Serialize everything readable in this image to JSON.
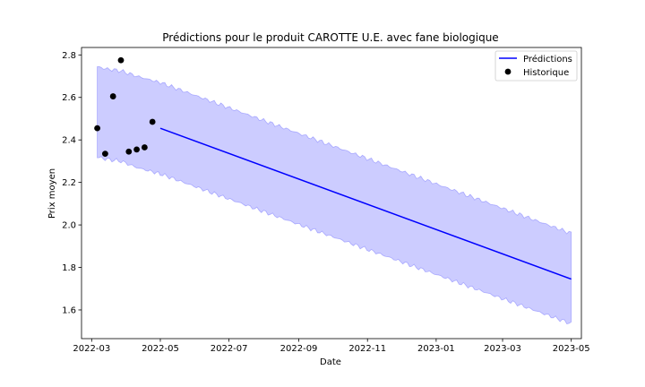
{
  "chart_data": {
    "type": "line",
    "title": "Prédictions pour le produit CAROTTE U.E. avec fane biologique",
    "xlabel": "Date",
    "ylabel": "Prix moyen",
    "xlim": [
      "2022-02-20",
      "2023-05-10"
    ],
    "ylim": [
      1.465,
      2.835
    ],
    "x_ticks": [
      "2022-03",
      "2022-05",
      "2022-07",
      "2022-09",
      "2022-11",
      "2023-01",
      "2023-03",
      "2023-05"
    ],
    "y_ticks": [
      "1.6",
      "1.8",
      "2.0",
      "2.2",
      "2.4",
      "2.6",
      "2.8"
    ],
    "grid": false,
    "legend_position": "top-right",
    "series": [
      {
        "name": "Prédictions",
        "kind": "line",
        "color": "#0000ff",
        "x": [
          "2022-05-01",
          "2023-05-01"
        ],
        "y": [
          2.455,
          1.745
        ]
      },
      {
        "name": "Historique",
        "kind": "scatter",
        "color": "#000000",
        "x": [
          "2022-03-06",
          "2022-03-13",
          "2022-03-20",
          "2022-03-27",
          "2022-04-03",
          "2022-04-10",
          "2022-04-17",
          "2022-04-24"
        ],
        "y": [
          2.455,
          2.335,
          2.605,
          2.775,
          2.345,
          2.355,
          2.365,
          2.485
        ]
      }
    ],
    "confidence_band": {
      "color": "#0000ff",
      "x": [
        "2022-03-06",
        "2022-03-13",
        "2022-03-27",
        "2022-04-10",
        "2022-04-24",
        "2022-05-01",
        "2023-05-01"
      ],
      "lower": [
        2.32,
        2.31,
        2.3,
        2.27,
        2.25,
        2.24,
        1.535
      ],
      "upper": [
        2.745,
        2.735,
        2.725,
        2.7,
        2.68,
        2.67,
        1.96
      ]
    }
  }
}
